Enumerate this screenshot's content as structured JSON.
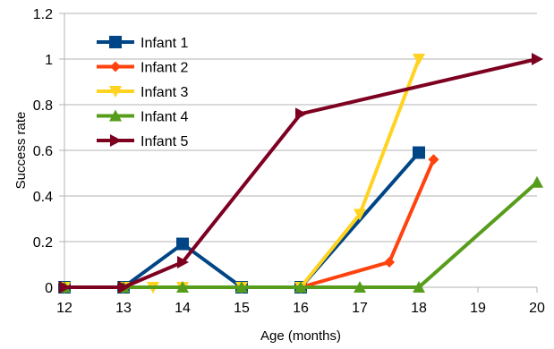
{
  "chart_data": {
    "type": "line",
    "title": "",
    "xlabel": "Age (months)",
    "ylabel": "Success rate",
    "xlim": [
      12,
      20
    ],
    "ylim": [
      0,
      1.2
    ],
    "x_ticks": [
      "12",
      "13",
      "14",
      "15",
      "16",
      "17",
      "18",
      "19",
      "20"
    ],
    "y_ticks": [
      "0",
      "0.2",
      "0.4",
      "0.6",
      "0.8",
      "1",
      "1.2"
    ],
    "grid": "horizontal",
    "legend_position": "top-left",
    "series": [
      {
        "name": "Infant 1",
        "color": "#004586",
        "marker": "square",
        "points": [
          [
            12,
            0
          ],
          [
            13,
            0
          ],
          [
            14,
            0.19
          ],
          [
            15,
            0
          ],
          [
            16,
            0
          ],
          [
            18,
            0.59
          ]
        ]
      },
      {
        "name": "Infant 2",
        "color": "#ff420e",
        "marker": "diamond",
        "points": [
          [
            12,
            0
          ],
          [
            13,
            0
          ],
          [
            14,
            0
          ],
          [
            15,
            0
          ],
          [
            16,
            0
          ],
          [
            17.5,
            0.11
          ],
          [
            18.25,
            0.56
          ]
        ]
      },
      {
        "name": "Infant 3",
        "color": "#ffd320",
        "marker": "triangle-down",
        "points": [
          [
            12,
            0
          ],
          [
            13,
            0
          ],
          [
            13.5,
            0
          ],
          [
            14,
            0
          ],
          [
            15,
            0
          ],
          [
            16,
            0
          ],
          [
            17,
            0.32
          ],
          [
            18,
            1.0
          ]
        ]
      },
      {
        "name": "Infant 4",
        "color": "#579d1c",
        "marker": "triangle-up",
        "points": [
          [
            12,
            0
          ],
          [
            13,
            0
          ],
          [
            14,
            0
          ],
          [
            15,
            0
          ],
          [
            16,
            0
          ],
          [
            17,
            0
          ],
          [
            18,
            0
          ],
          [
            20,
            0.46
          ]
        ]
      },
      {
        "name": "Infant 5",
        "color": "#7e0021",
        "marker": "triangle-right",
        "points": [
          [
            12,
            0
          ],
          [
            13,
            0
          ],
          [
            14,
            0.11
          ],
          [
            16,
            0.76
          ],
          [
            20,
            1.0
          ]
        ]
      }
    ]
  }
}
